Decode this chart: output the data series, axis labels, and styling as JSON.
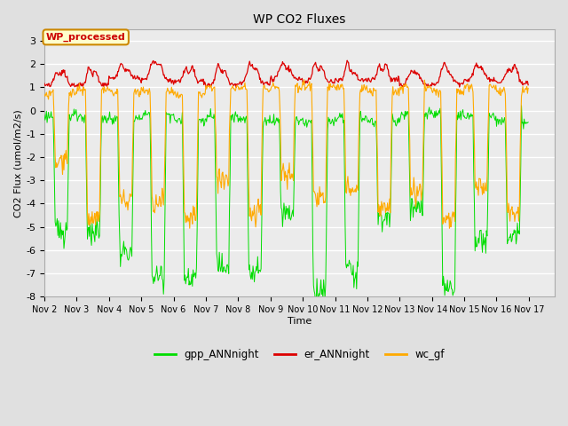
{
  "title": "WP CO2 Fluxes",
  "xlabel": "Time",
  "ylabel": "CO2 Flux (umol/m2/s)",
  "ylim": [
    -8.0,
    3.5
  ],
  "yticks": [
    -8.0,
    -7.0,
    -6.0,
    -5.0,
    -4.0,
    -3.0,
    -2.0,
    -1.0,
    0.0,
    1.0,
    2.0,
    3.0
  ],
  "xlim": [
    1.0,
    16.8
  ],
  "x_tick_labels": [
    "Nov 2",
    "Nov 3",
    "Nov 4",
    "Nov 5",
    "Nov 6",
    "Nov 7",
    "Nov 8",
    "Nov 9",
    "Nov 10",
    "Nov 11",
    "Nov 12",
    "Nov 13",
    "Nov 14",
    "Nov 15",
    "Nov 16",
    "Nov 17"
  ],
  "x_tick_positions": [
    1,
    2,
    3,
    4,
    5,
    6,
    7,
    8,
    9,
    10,
    11,
    12,
    13,
    14,
    15,
    16
  ],
  "bg_color": "#e0e0e0",
  "plot_bg_color": "#ebebeb",
  "grid_color": "#ffffff",
  "line_colors": {
    "gpp": "#00dd00",
    "er": "#dd0000",
    "wc": "#ffaa00"
  },
  "legend_labels": [
    "gpp_ANNnight",
    "er_ANNnight",
    "wc_gf"
  ],
  "annotation_text": "WP_processed",
  "annotation_bg": "#ffffcc",
  "annotation_border": "#cc8800",
  "annotation_text_color": "#cc0000",
  "n_days": 15,
  "n_per_day": 48
}
